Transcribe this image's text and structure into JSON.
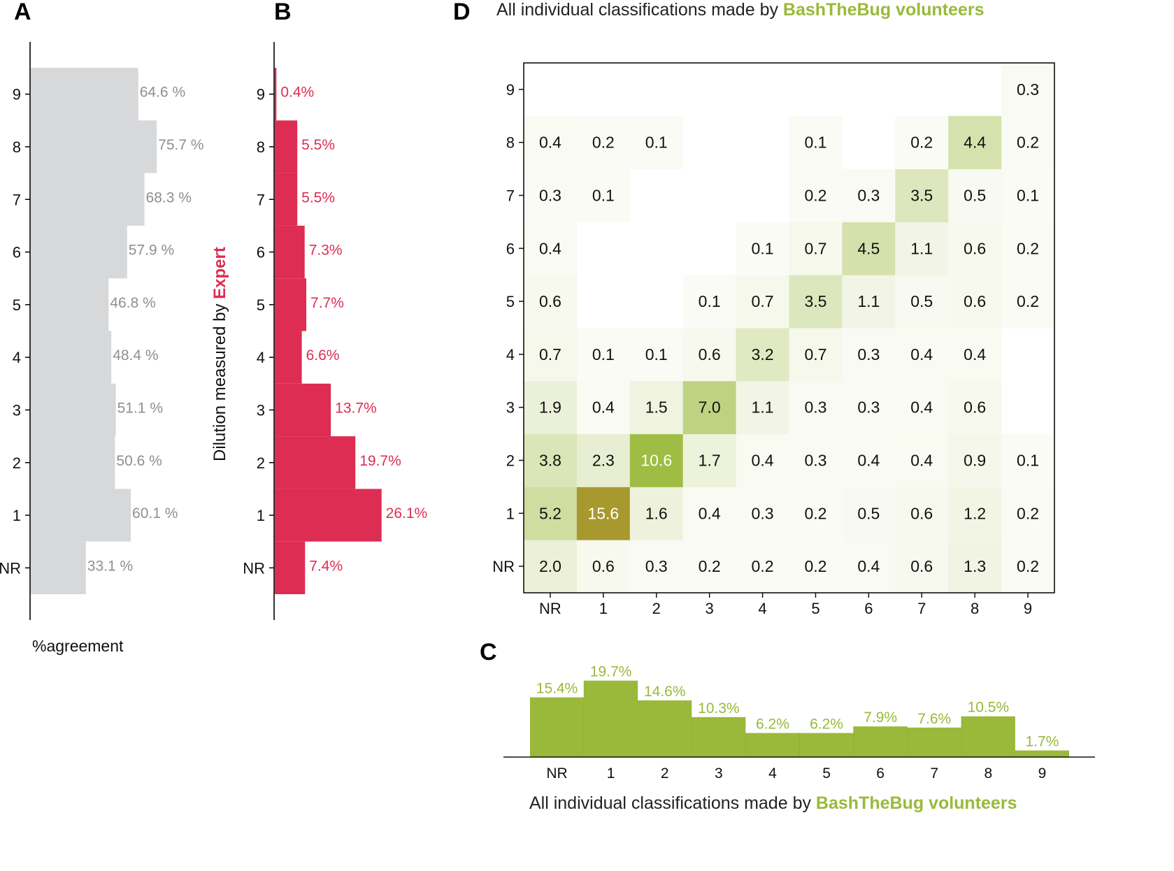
{
  "panels": {
    "A": "A",
    "B": "B",
    "C": "C",
    "D": "D"
  },
  "colors": {
    "gray_bar": "#d7d8da",
    "gray_text": "#8f8f8f",
    "red": "#de2d52",
    "green": "#9ab93a",
    "green_dark": "#a99a2e",
    "axis": "#000000"
  },
  "y_ticks": [
    "NR",
    "1",
    "2",
    "3",
    "4",
    "5",
    "6",
    "7",
    "8",
    "9"
  ],
  "x_ticks": [
    "NR",
    "1",
    "2",
    "3",
    "4",
    "5",
    "6",
    "7",
    "8",
    "9"
  ],
  "ylabel_prefix": "Dilution measured by ",
  "ylabel_expert": "Expert",
  "title_prefix": "All individual classifications made by ",
  "title_highlight": "BashTheBug volunteers",
  "chart_data": [
    {
      "panel": "A",
      "type": "bar",
      "orientation": "horizontal",
      "categories": [
        "NR",
        "1",
        "2",
        "3",
        "4",
        "5",
        "6",
        "7",
        "8",
        "9"
      ],
      "values": [
        33.1,
        60.1,
        50.6,
        51.1,
        48.4,
        46.8,
        57.9,
        68.3,
        75.7,
        64.6
      ],
      "labels": [
        "33.1 %",
        "60.1 %",
        "50.6 %",
        "51.1 %",
        "48.4 %",
        "46.8 %",
        "57.9 %",
        "68.3 %",
        "75.7 %",
        "64.6 %"
      ],
      "xlabel": "%agreement",
      "xlim": [
        0,
        100
      ]
    },
    {
      "panel": "B",
      "type": "bar",
      "orientation": "horizontal",
      "categories": [
        "NR",
        "1",
        "2",
        "3",
        "4",
        "5",
        "6",
        "7",
        "8",
        "9"
      ],
      "values": [
        7.4,
        26.1,
        19.7,
        13.7,
        6.6,
        7.7,
        7.3,
        5.5,
        5.5,
        0.4
      ],
      "labels": [
        "7.4%",
        "26.1%",
        "19.7%",
        "13.7%",
        "6.6%",
        "7.7%",
        "7.3%",
        "5.5%",
        "5.5%",
        "0.4%"
      ],
      "ylabel": "Dilution measured by Expert",
      "xlim": [
        0,
        35
      ]
    },
    {
      "panel": "C",
      "type": "bar",
      "categories": [
        "NR",
        "1",
        "2",
        "3",
        "4",
        "5",
        "6",
        "7",
        "8",
        "9"
      ],
      "values": [
        15.4,
        19.7,
        14.6,
        10.3,
        6.2,
        6.2,
        7.9,
        7.6,
        10.5,
        1.7
      ],
      "labels": [
        "15.4%",
        "19.7%",
        "14.6%",
        "10.3%",
        "6.2%",
        "6.2%",
        "7.9%",
        "7.6%",
        "10.5%",
        "1.7%"
      ],
      "xlabel": "All individual classifications made by BashTheBug volunteers",
      "ylim": [
        0,
        25
      ]
    },
    {
      "panel": "D",
      "type": "heatmap",
      "title": "All individual classifications made by BashTheBug volunteers",
      "x_categories": [
        "NR",
        "1",
        "2",
        "3",
        "4",
        "5",
        "6",
        "7",
        "8",
        "9"
      ],
      "y_categories": [
        "NR",
        "1",
        "2",
        "3",
        "4",
        "5",
        "6",
        "7",
        "8",
        "9"
      ],
      "rows": [
        [
          "2.0",
          "0.6",
          "0.3",
          "0.2",
          "0.2",
          "0.2",
          "0.4",
          "0.6",
          "1.3",
          "0.2"
        ],
        [
          "5.2",
          "15.6",
          "1.6",
          "0.4",
          "0.3",
          "0.2",
          "0.5",
          "0.6",
          "1.2",
          "0.2"
        ],
        [
          "3.8",
          "2.3",
          "10.6",
          "1.7",
          "0.4",
          "0.3",
          "0.4",
          "0.4",
          "0.9",
          "0.1"
        ],
        [
          "1.9",
          "0.4",
          "1.5",
          "7.0",
          "1.1",
          "0.3",
          "0.3",
          "0.4",
          "0.6",
          ""
        ],
        [
          "0.7",
          "0.1",
          "0.1",
          "0.6",
          "3.2",
          "0.7",
          "0.3",
          "0.4",
          "0.4",
          ""
        ],
        [
          "0.6",
          "",
          "",
          "0.1",
          "0.7",
          "3.5",
          "1.1",
          "0.5",
          "0.6",
          "0.2"
        ],
        [
          "0.4",
          "",
          "",
          "",
          "0.1",
          "0.7",
          "4.5",
          "1.1",
          "0.6",
          "0.2"
        ],
        [
          "0.3",
          "0.1",
          "",
          "",
          "",
          "0.2",
          "0.3",
          "3.5",
          "0.5",
          "0.1"
        ],
        [
          "0.4",
          "0.2",
          "0.1",
          "",
          "",
          "0.1",
          "",
          "0.2",
          "4.4",
          "0.2"
        ],
        [
          "",
          "",
          "",
          "",
          "",
          "",
          "",
          "",
          "",
          "0.3"
        ]
      ]
    }
  ]
}
